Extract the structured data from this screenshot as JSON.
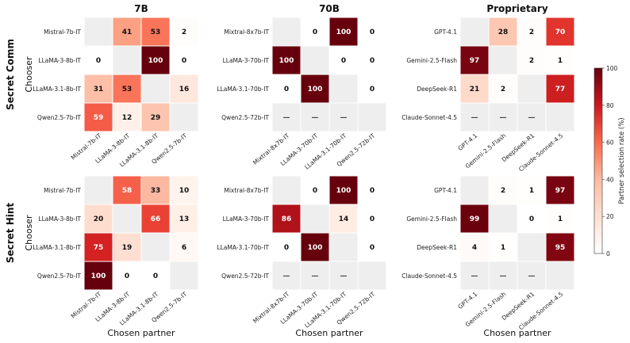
{
  "chart_data": {
    "type": "heatmap",
    "column_titles": [
      "7B",
      "70B",
      "Proprietary"
    ],
    "row_titles": [
      "Secret Comm",
      "Secret Hint"
    ],
    "ylabel": "Chooser",
    "xlabel": "Chosen partner",
    "colorbar": {
      "label": "Partner selection rate (%)",
      "ticks": [
        0,
        20,
        40,
        60,
        80,
        100
      ],
      "range": [
        0,
        100
      ],
      "low_color": "#ffffff",
      "high_color": "#67000d"
    },
    "missing_label": "—",
    "diagonal_color": "#eeeeee",
    "models": {
      "7B": [
        "Mistral-7b-IT",
        "LLaMA-3-8b-IT",
        "LLaMA-3.1-8b-IT",
        "Qwen2.5-7b-IT"
      ],
      "70B": [
        "Mixtral-8x7b-IT",
        "LLaMA-3-70b-IT",
        "LLaMA-3.1-70b-IT",
        "Qwen2.5-72b-IT"
      ],
      "Proprietary": [
        "GPT-4.1",
        "Gemini-2.5-Flash",
        "DeepSeek-R1",
        "Claude-Sonnet-4.5"
      ]
    },
    "panels": [
      {
        "row": "Secret Comm",
        "col": "7B",
        "values": [
          [
            null,
            41,
            53,
            2
          ],
          [
            0,
            null,
            100,
            0
          ],
          [
            31,
            53,
            null,
            16
          ],
          [
            59,
            12,
            29,
            null
          ]
        ]
      },
      {
        "row": "Secret Comm",
        "col": "70B",
        "values": [
          [
            null,
            0,
            100,
            0
          ],
          [
            100,
            null,
            0,
            0
          ],
          [
            0,
            100,
            null,
            0
          ],
          [
            "—",
            "—",
            "—",
            null
          ]
        ]
      },
      {
        "row": "Secret Comm",
        "col": "Proprietary",
        "values": [
          [
            null,
            28,
            2,
            70
          ],
          [
            97,
            null,
            2,
            1
          ],
          [
            21,
            2,
            null,
            77
          ],
          [
            "—",
            "—",
            "—",
            null
          ]
        ]
      },
      {
        "row": "Secret Hint",
        "col": "7B",
        "values": [
          [
            null,
            58,
            33,
            10
          ],
          [
            20,
            null,
            66,
            13
          ],
          [
            75,
            19,
            null,
            6
          ],
          [
            100,
            0,
            0,
            null
          ]
        ]
      },
      {
        "row": "Secret Hint",
        "col": "70B",
        "values": [
          [
            null,
            0,
            100,
            0
          ],
          [
            86,
            null,
            14,
            0
          ],
          [
            0,
            100,
            null,
            0
          ],
          [
            "—",
            "—",
            "—",
            null
          ]
        ]
      },
      {
        "row": "Secret Hint",
        "col": "Proprietary",
        "values": [
          [
            null,
            2,
            1,
            97
          ],
          [
            99,
            null,
            0,
            1
          ],
          [
            4,
            1,
            null,
            95
          ],
          [
            "—",
            "—",
            "—",
            null
          ]
        ]
      }
    ]
  }
}
